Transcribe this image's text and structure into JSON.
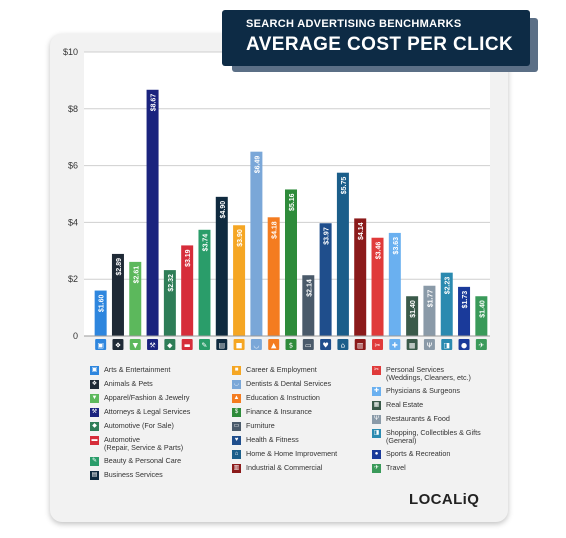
{
  "banner": {
    "subtitle": "SEARCH ADVERTISING BENCHMARKS",
    "title": "AVERAGE COST PER CLICK"
  },
  "brand": "LOCALiQ",
  "chart_data": {
    "type": "bar",
    "ylim": [
      0,
      10
    ],
    "yticks": [
      "0",
      "$2",
      "$4",
      "$6",
      "$8",
      "$10"
    ],
    "grid": true,
    "legend": "bottom",
    "categories": [
      "Arts & Entertainment",
      "Animals & Pets",
      "Apparel/Fashion & Jewelry",
      "Attorneys & Legal Services",
      "Automotive (For Sale)",
      "Automotive (Repair, Service & Parts)",
      "Beauty & Personal Care",
      "Business Services",
      "Career & Employment",
      "Dentists & Dental Services",
      "Education & Instruction",
      "Finance & Insurance",
      "Furniture",
      "Health & Fitness",
      "Home & Home Improvement",
      "Industrial & Commercial",
      "Personal Services (Weddings, Cleaners, etc.)",
      "Physicians & Surgeons",
      "Real Estate",
      "Restaurants & Food",
      "Shopping, Collectibles & Gifts (General)",
      "Sports & Recreation",
      "Travel"
    ],
    "values": [
      1.6,
      2.89,
      2.61,
      8.67,
      2.32,
      3.19,
      3.74,
      4.9,
      3.9,
      6.49,
      4.18,
      5.16,
      2.14,
      3.97,
      5.75,
      4.14,
      3.46,
      3.63,
      1.4,
      1.77,
      2.23,
      1.73,
      1.4
    ],
    "labels": [
      "$1.60",
      "$2.89",
      "$2.61",
      "$8.67",
      "$2.32",
      "$3.19",
      "$3.74",
      "$4.90",
      "$3.90",
      "$6.49",
      "$4.18",
      "$5.16",
      "$2.14",
      "$3.97",
      "$5.75",
      "$4.14",
      "$3.46",
      "$3.63",
      "$1.40",
      "$1.77",
      "$2.23",
      "$1.73",
      "$1.40"
    ],
    "colors": [
      "#2e86de",
      "#1f2a36",
      "#5cb85c",
      "#1a237e",
      "#2e7d57",
      "#d62d3a",
      "#2a9d6a",
      "#0f2a3f",
      "#f5a623",
      "#7aa7d8",
      "#f47c20",
      "#2e8b3a",
      "#4a5a6a",
      "#1f4e8c",
      "#1b5e8a",
      "#8b1a1a",
      "#e03a3a",
      "#6ab0f0",
      "#3a5a4a",
      "#8a9aa8",
      "#2a8ab0",
      "#1a3a9a",
      "#3a9a5a"
    ],
    "icons": [
      "ticket",
      "paw",
      "shirt",
      "gavel",
      "tag",
      "car",
      "pen",
      "doc",
      "case",
      "tooth",
      "cap",
      "dollar",
      "sofa",
      "heart",
      "house",
      "factory",
      "scissors",
      "cross",
      "building",
      "fork",
      "bag",
      "ball",
      "plane"
    ],
    "icon_glyphs": [
      "▣",
      "❖",
      "▼",
      "⚒",
      "◆",
      "▬",
      "✎",
      "▤",
      "■",
      "◡",
      "▲",
      "$",
      "▭",
      "♥",
      "⌂",
      "▥",
      "✂",
      "✚",
      "▦",
      "Ψ",
      "◨",
      "●",
      "✈"
    ]
  }
}
